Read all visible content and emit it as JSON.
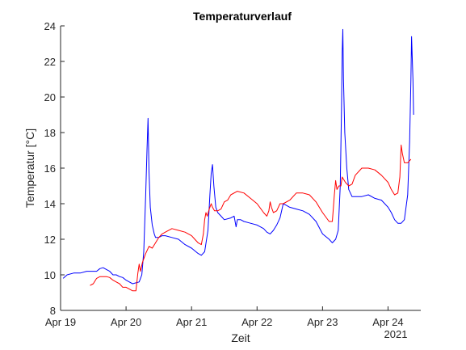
{
  "chart_data": {
    "type": "line",
    "title": "Temperaturverlauf",
    "xlabel": "Zeit",
    "ylabel": "Temperatur [°C]",
    "x_year_label": "2021",
    "xlim": [
      0,
      5.5
    ],
    "ylim": [
      8,
      24
    ],
    "x_ticks": [
      {
        "x": 0,
        "label": "Apr 19"
      },
      {
        "x": 1,
        "label": "Apr 20"
      },
      {
        "x": 2,
        "label": "Apr 21"
      },
      {
        "x": 3,
        "label": "Apr 22"
      },
      {
        "x": 4,
        "label": "Apr 23"
      },
      {
        "x": 5,
        "label": "Apr 24"
      }
    ],
    "y_ticks": [
      8,
      10,
      12,
      14,
      16,
      18,
      20,
      22,
      24
    ],
    "grid": false,
    "legend": "none",
    "series": [
      {
        "color": "#0000ff",
        "points": [
          [
            0.04,
            9.8
          ],
          [
            0.1,
            10.0
          ],
          [
            0.2,
            10.1
          ],
          [
            0.3,
            10.1
          ],
          [
            0.4,
            10.2
          ],
          [
            0.5,
            10.2
          ],
          [
            0.55,
            10.2
          ],
          [
            0.6,
            10.35
          ],
          [
            0.65,
            10.4
          ],
          [
            0.7,
            10.3
          ],
          [
            0.75,
            10.2
          ],
          [
            0.8,
            10.0
          ],
          [
            0.85,
            10.0
          ],
          [
            0.9,
            9.9
          ],
          [
            0.95,
            9.85
          ],
          [
            1.0,
            9.7
          ],
          [
            1.05,
            9.6
          ],
          [
            1.1,
            9.5
          ],
          [
            1.15,
            9.55
          ],
          [
            1.2,
            9.6
          ],
          [
            1.24,
            10.0
          ],
          [
            1.27,
            11.3
          ],
          [
            1.3,
            14.5
          ],
          [
            1.32,
            17.0
          ],
          [
            1.335,
            18.8
          ],
          [
            1.35,
            15.8
          ],
          [
            1.37,
            13.8
          ],
          [
            1.4,
            12.8
          ],
          [
            1.43,
            12.3
          ],
          [
            1.45,
            12.1
          ],
          [
            1.5,
            12.1
          ],
          [
            1.55,
            12.2
          ],
          [
            1.6,
            12.2
          ],
          [
            1.7,
            12.1
          ],
          [
            1.8,
            12.0
          ],
          [
            1.9,
            11.7
          ],
          [
            2.0,
            11.5
          ],
          [
            2.1,
            11.2
          ],
          [
            2.15,
            11.1
          ],
          [
            2.2,
            11.3
          ],
          [
            2.25,
            12.5
          ],
          [
            2.28,
            14.5
          ],
          [
            2.3,
            15.7
          ],
          [
            2.32,
            16.2
          ],
          [
            2.34,
            15.0
          ],
          [
            2.37,
            13.8
          ],
          [
            2.4,
            13.5
          ],
          [
            2.45,
            13.3
          ],
          [
            2.5,
            13.1
          ],
          [
            2.6,
            13.2
          ],
          [
            2.65,
            13.3
          ],
          [
            2.68,
            12.7
          ],
          [
            2.7,
            13.1
          ],
          [
            2.75,
            13.1
          ],
          [
            2.8,
            13.0
          ],
          [
            2.9,
            12.9
          ],
          [
            3.0,
            12.8
          ],
          [
            3.1,
            12.6
          ],
          [
            3.15,
            12.4
          ],
          [
            3.2,
            12.3
          ],
          [
            3.25,
            12.5
          ],
          [
            3.3,
            12.8
          ],
          [
            3.35,
            13.2
          ],
          [
            3.4,
            14.0
          ],
          [
            3.45,
            13.9
          ],
          [
            3.5,
            13.8
          ],
          [
            3.6,
            13.7
          ],
          [
            3.7,
            13.6
          ],
          [
            3.8,
            13.4
          ],
          [
            3.9,
            13.0
          ],
          [
            4.0,
            12.3
          ],
          [
            4.1,
            12.0
          ],
          [
            4.15,
            11.8
          ],
          [
            4.2,
            12.0
          ],
          [
            4.24,
            12.5
          ],
          [
            4.27,
            15.0
          ],
          [
            4.29,
            19.5
          ],
          [
            4.3,
            22.5
          ],
          [
            4.31,
            23.8
          ],
          [
            4.32,
            21.0
          ],
          [
            4.34,
            18.0
          ],
          [
            4.37,
            16.0
          ],
          [
            4.4,
            14.8
          ],
          [
            4.45,
            14.4
          ],
          [
            4.5,
            14.4
          ],
          [
            4.6,
            14.4
          ],
          [
            4.7,
            14.5
          ],
          [
            4.8,
            14.3
          ],
          [
            4.9,
            14.2
          ],
          [
            5.0,
            13.8
          ],
          [
            5.05,
            13.5
          ],
          [
            5.1,
            13.1
          ],
          [
            5.15,
            12.9
          ],
          [
            5.2,
            12.9
          ],
          [
            5.25,
            13.1
          ],
          [
            5.3,
            14.5
          ],
          [
            5.33,
            17.5
          ],
          [
            5.35,
            21.0
          ],
          [
            5.36,
            23.4
          ],
          [
            5.38,
            21.0
          ],
          [
            5.39,
            19.0
          ]
        ]
      },
      {
        "color": "#ff0000",
        "points": [
          [
            0.45,
            9.4
          ],
          [
            0.5,
            9.5
          ],
          [
            0.55,
            9.8
          ],
          [
            0.6,
            9.9
          ],
          [
            0.7,
            9.9
          ],
          [
            0.75,
            9.85
          ],
          [
            0.8,
            9.7
          ],
          [
            0.85,
            9.6
          ],
          [
            0.9,
            9.5
          ],
          [
            0.95,
            9.3
          ],
          [
            1.0,
            9.3
          ],
          [
            1.05,
            9.2
          ],
          [
            1.1,
            9.1
          ],
          [
            1.15,
            9.1
          ],
          [
            1.18,
            10.1
          ],
          [
            1.2,
            10.6
          ],
          [
            1.22,
            10.2
          ],
          [
            1.25,
            10.7
          ],
          [
            1.3,
            11.2
          ],
          [
            1.35,
            11.6
          ],
          [
            1.4,
            11.5
          ],
          [
            1.45,
            11.8
          ],
          [
            1.5,
            12.1
          ],
          [
            1.55,
            12.3
          ],
          [
            1.6,
            12.4
          ],
          [
            1.7,
            12.6
          ],
          [
            1.8,
            12.5
          ],
          [
            1.9,
            12.4
          ],
          [
            2.0,
            12.2
          ],
          [
            2.05,
            12.0
          ],
          [
            2.1,
            11.8
          ],
          [
            2.15,
            11.7
          ],
          [
            2.18,
            12.3
          ],
          [
            2.2,
            13.1
          ],
          [
            2.22,
            13.5
          ],
          [
            2.24,
            13.3
          ],
          [
            2.27,
            13.7
          ],
          [
            2.3,
            14.0
          ],
          [
            2.32,
            13.8
          ],
          [
            2.35,
            13.6
          ],
          [
            2.4,
            13.6
          ],
          [
            2.45,
            13.7
          ],
          [
            2.5,
            14.1
          ],
          [
            2.55,
            14.2
          ],
          [
            2.6,
            14.5
          ],
          [
            2.7,
            14.7
          ],
          [
            2.8,
            14.6
          ],
          [
            2.9,
            14.3
          ],
          [
            3.0,
            14.0
          ],
          [
            3.1,
            13.5
          ],
          [
            3.15,
            13.3
          ],
          [
            3.18,
            13.6
          ],
          [
            3.2,
            14.1
          ],
          [
            3.22,
            13.8
          ],
          [
            3.25,
            13.5
          ],
          [
            3.3,
            13.6
          ],
          [
            3.35,
            14.0
          ],
          [
            3.4,
            14.0
          ],
          [
            3.5,
            14.2
          ],
          [
            3.6,
            14.6
          ],
          [
            3.7,
            14.6
          ],
          [
            3.8,
            14.5
          ],
          [
            3.9,
            14.1
          ],
          [
            4.0,
            13.5
          ],
          [
            4.1,
            13.0
          ],
          [
            4.15,
            13.0
          ],
          [
            4.18,
            14.5
          ],
          [
            4.2,
            15.3
          ],
          [
            4.22,
            14.8
          ],
          [
            4.25,
            15.0
          ],
          [
            4.28,
            15.0
          ],
          [
            4.3,
            15.5
          ],
          [
            4.35,
            15.2
          ],
          [
            4.4,
            15.0
          ],
          [
            4.45,
            15.1
          ],
          [
            4.5,
            15.6
          ],
          [
            4.6,
            16.0
          ],
          [
            4.7,
            16.0
          ],
          [
            4.8,
            15.9
          ],
          [
            4.9,
            15.6
          ],
          [
            5.0,
            15.2
          ],
          [
            5.05,
            14.8
          ],
          [
            5.1,
            14.5
          ],
          [
            5.15,
            14.6
          ],
          [
            5.18,
            15.5
          ],
          [
            5.2,
            17.3
          ],
          [
            5.22,
            16.8
          ],
          [
            5.25,
            16.3
          ],
          [
            5.3,
            16.3
          ],
          [
            5.35,
            16.5
          ]
        ]
      }
    ]
  }
}
